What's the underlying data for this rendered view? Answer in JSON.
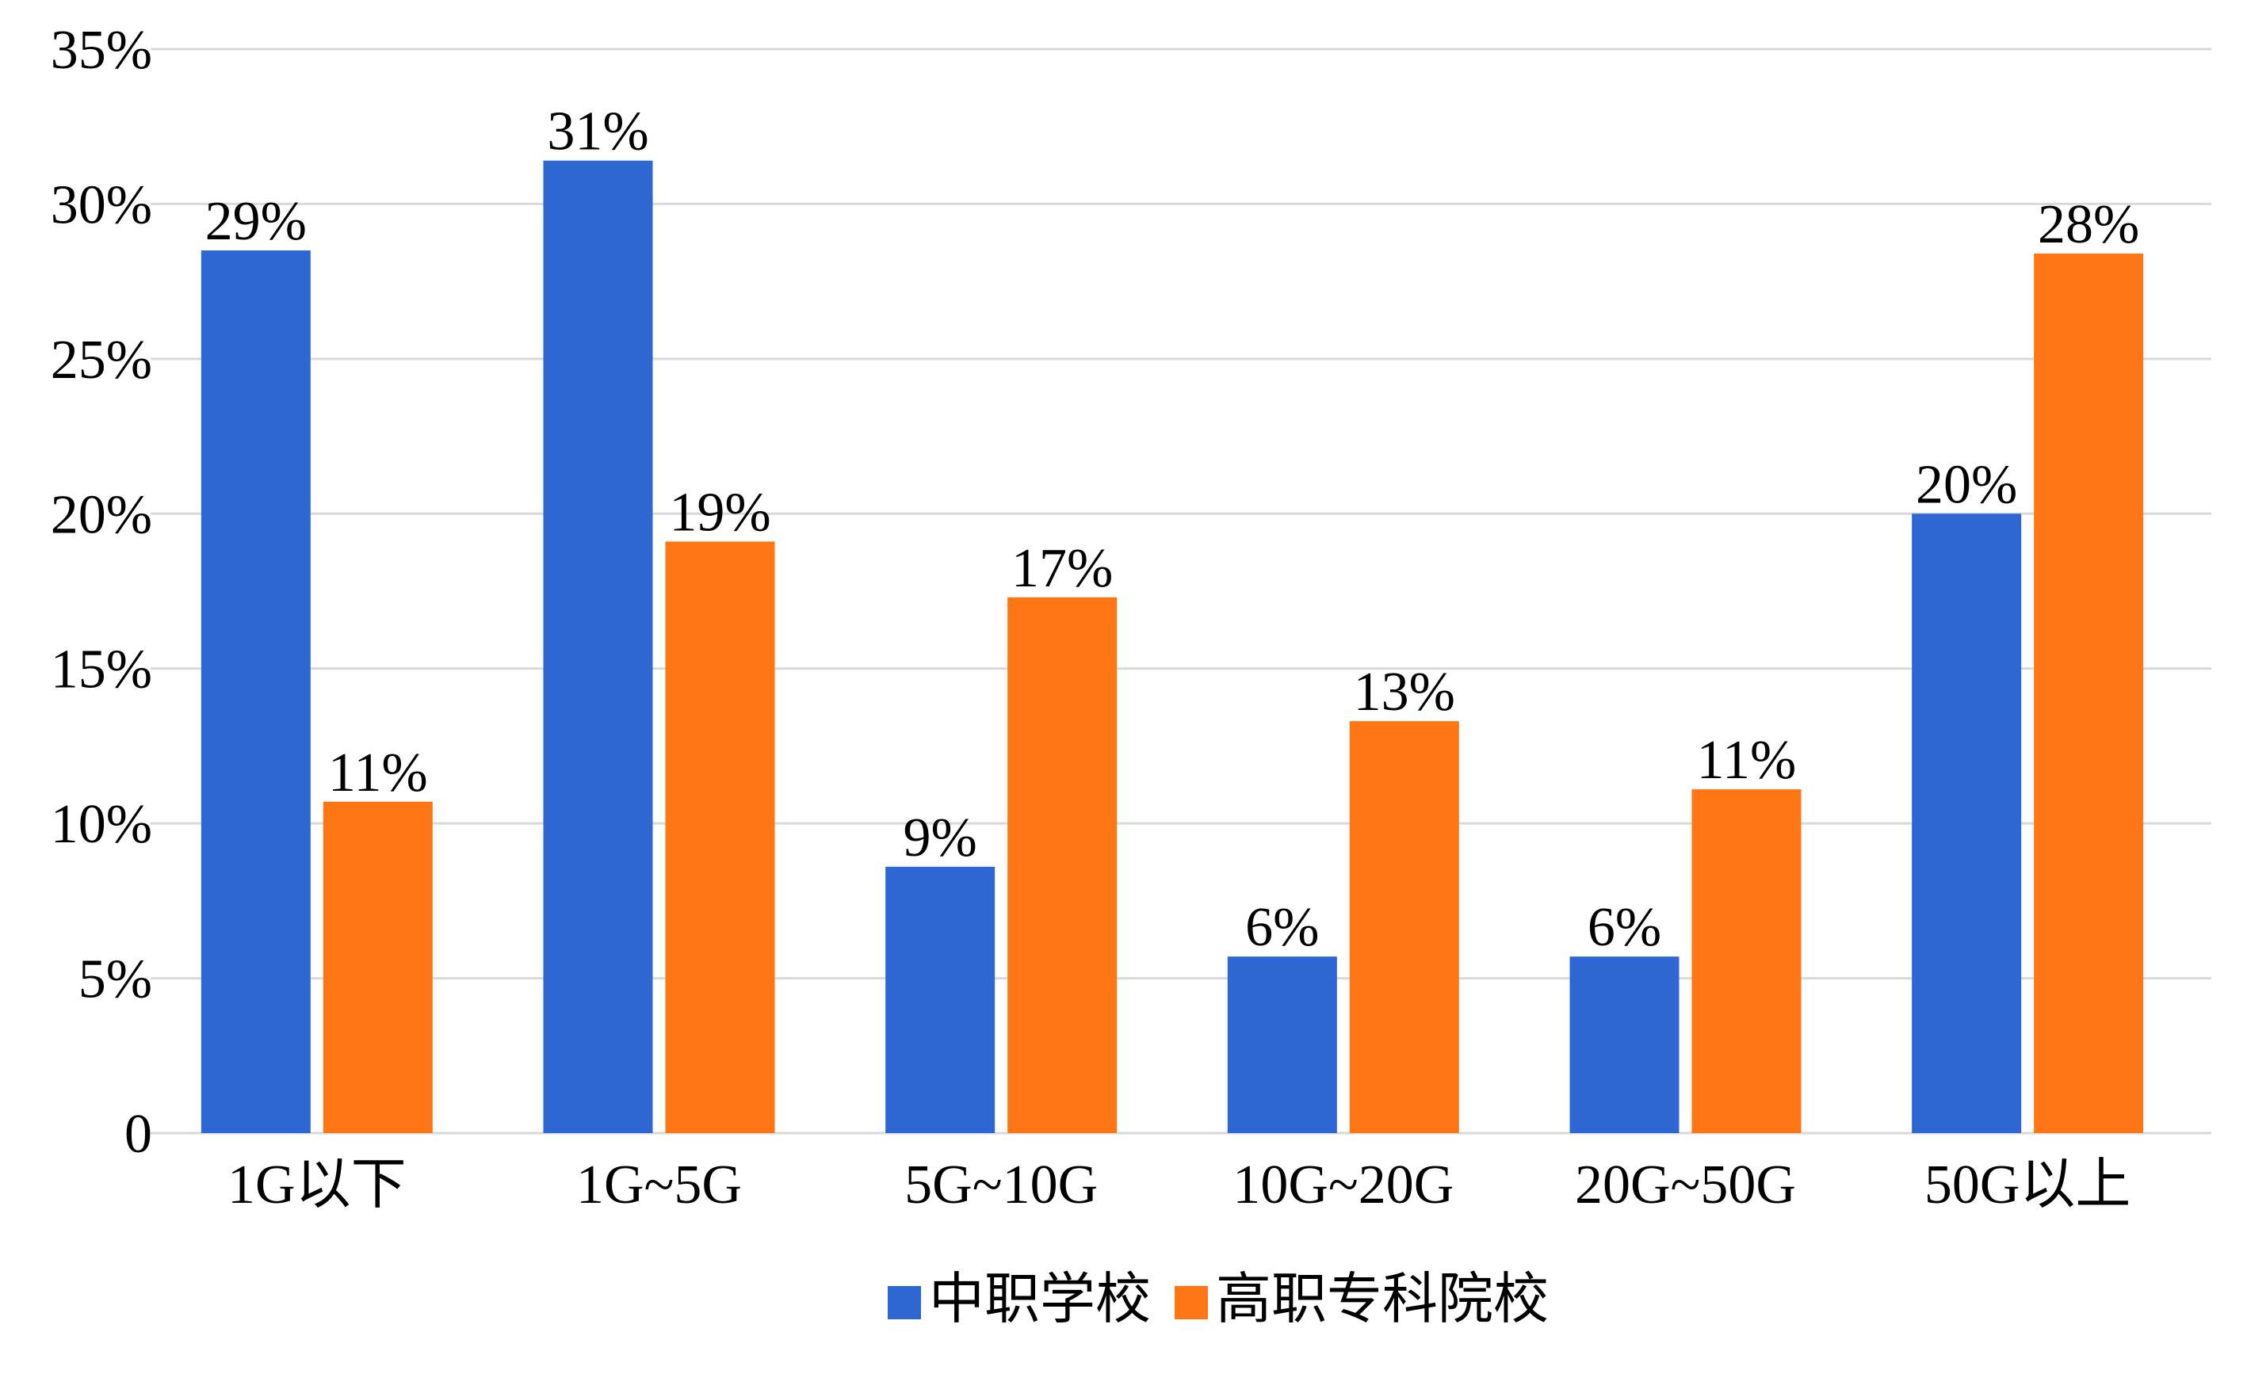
{
  "chart_data": {
    "type": "bar",
    "title": "",
    "xlabel": "",
    "ylabel": "",
    "categories": [
      "1G以下",
      "1G~5G",
      "5G~10G",
      "10G~20G",
      "20G~50G",
      "50G以上"
    ],
    "series": [
      {
        "name": "中职学校",
        "color": "#2E67D3",
        "values": [
          28.5,
          31.4,
          8.6,
          5.7,
          5.7,
          20.0
        ],
        "labels": [
          "29%",
          "31%",
          "9%",
          "6%",
          "6%",
          "20%"
        ]
      },
      {
        "name": "高职专科院校",
        "color": "#FF7514",
        "values": [
          10.7,
          19.1,
          17.3,
          13.3,
          11.1,
          28.4
        ],
        "labels": [
          "11%",
          "19%",
          "17%",
          "13%",
          "11%",
          "28%"
        ]
      }
    ],
    "ylim": [
      0,
      35
    ],
    "yticks": [
      0,
      5,
      10,
      15,
      20,
      25,
      30,
      35
    ],
    "ytick_labels": [
      "0",
      "5%",
      "10%",
      "15%",
      "20%",
      "25%",
      "30%",
      "35%"
    ],
    "grid": true,
    "legend": "bottom",
    "gridline_color": "#D9D9D9"
  }
}
